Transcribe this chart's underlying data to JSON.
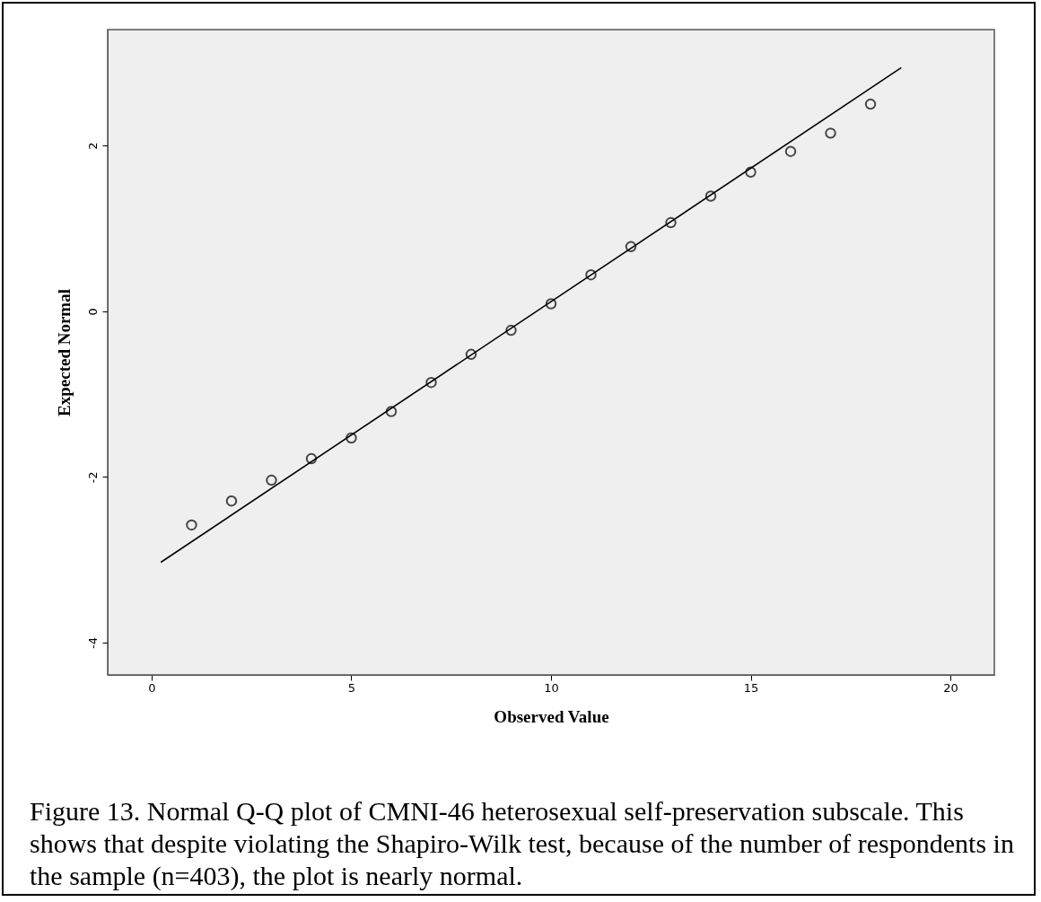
{
  "chart_data": {
    "type": "scatter",
    "xlabel": "Observed Value",
    "ylabel": "Expected Normal",
    "xlim": [
      -1.1,
      21.1
    ],
    "ylim": [
      -4.39,
      3.4
    ],
    "xticks": [
      0,
      5,
      10,
      15,
      20
    ],
    "yticks": [
      -4,
      -2,
      0,
      2
    ],
    "series": [
      {
        "type": "line",
        "color": "#000000",
        "x": [
          0.23,
          18.77
        ],
        "values": [
          -3.03,
          2.94
        ]
      },
      {
        "marker": "circle",
        "color": "#000000",
        "x": [
          1,
          2,
          3,
          4,
          5,
          6,
          7,
          8,
          9,
          10,
          11,
          12,
          13,
          14,
          15,
          16,
          17,
          18
        ],
        "values": [
          -2.58,
          -2.29,
          -2.04,
          -1.78,
          -1.53,
          -1.21,
          -0.86,
          -0.52,
          -0.23,
          0.09,
          0.44,
          0.78,
          1.07,
          1.39,
          1.68,
          1.93,
          2.15,
          2.5
        ]
      }
    ],
    "annotations": [
      "Figure 13. Normal Q-Q plot of CMNI-46 heterosexual self-preservation subscale. This shows that despite violating the Shapiro-Wilk test, because of the number of respondents in the sample (n=403), the plot is nearly normal."
    ]
  }
}
